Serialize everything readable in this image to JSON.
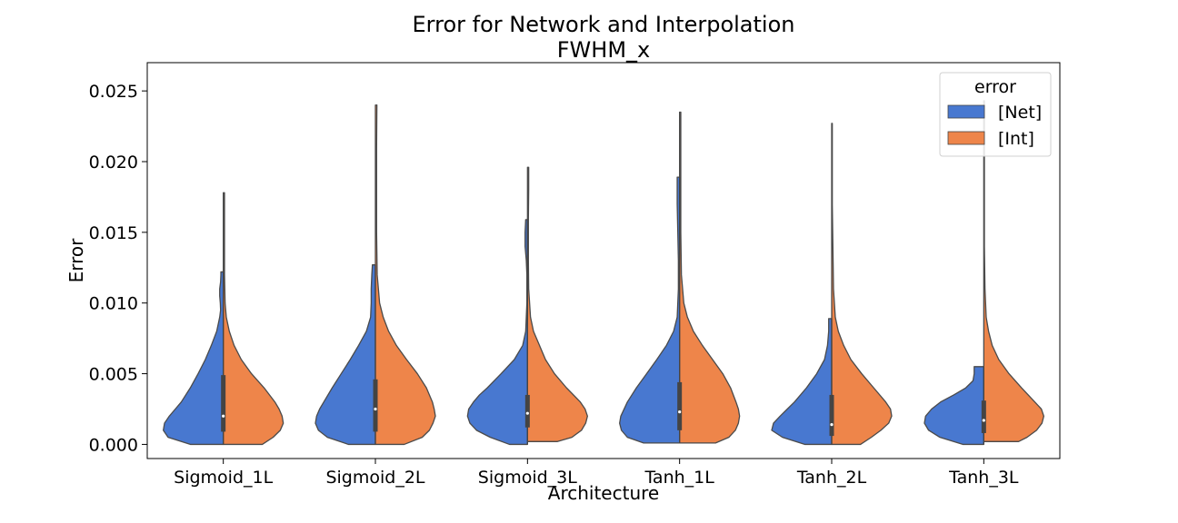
{
  "chart_data": {
    "type": "violin",
    "title": "Error for Network and Interpolation",
    "subtitle": "FWHM_x",
    "xlabel": "Architecture",
    "ylabel": "Error",
    "ylim": [
      -0.001,
      0.027
    ],
    "yticks": [
      0.0,
      0.005,
      0.01,
      0.015,
      0.02,
      0.025
    ],
    "ytick_labels": [
      "0.000",
      "0.005",
      "0.010",
      "0.015",
      "0.020",
      "0.025"
    ],
    "categories": [
      "Sigmoid_1L",
      "Sigmoid_2L",
      "Sigmoid_3L",
      "Tanh_1L",
      "Tanh_2L",
      "Tanh_3L"
    ],
    "split": true,
    "legend": {
      "title": "error",
      "position": "top-right",
      "entries": [
        "[Net]",
        "[Int]"
      ]
    },
    "series": [
      {
        "name": "[Net]",
        "color": "#4878d0",
        "side": "left",
        "distributions": [
          {
            "min": 0.0,
            "max": 0.0122,
            "q1": 0.0009,
            "median": 0.002,
            "q3": 0.0049,
            "profile": [
              [
                0.0,
                0.55
              ],
              [
                0.0005,
                0.92
              ],
              [
                0.001,
                1.0
              ],
              [
                0.0015,
                0.98
              ],
              [
                0.002,
                0.9
              ],
              [
                0.0025,
                0.8
              ],
              [
                0.003,
                0.7
              ],
              [
                0.004,
                0.55
              ],
              [
                0.005,
                0.42
              ],
              [
                0.006,
                0.3
              ],
              [
                0.007,
                0.2
              ],
              [
                0.008,
                0.11
              ],
              [
                0.009,
                0.06
              ],
              [
                0.0095,
                0.045
              ],
              [
                0.01,
                0.05
              ],
              [
                0.0105,
                0.06
              ],
              [
                0.011,
                0.06
              ],
              [
                0.0115,
                0.045
              ],
              [
                0.012,
                0.04
              ],
              [
                0.0122,
                0.04
              ]
            ]
          },
          {
            "min": 0.0,
            "max": 0.0127,
            "q1": 0.0009,
            "median": 0.0025,
            "q3": 0.0046,
            "profile": [
              [
                0.0,
                0.45
              ],
              [
                0.0005,
                0.8
              ],
              [
                0.001,
                0.95
              ],
              [
                0.0015,
                1.0
              ],
              [
                0.002,
                0.98
              ],
              [
                0.0025,
                0.93
              ],
              [
                0.003,
                0.86
              ],
              [
                0.004,
                0.72
              ],
              [
                0.005,
                0.57
              ],
              [
                0.006,
                0.42
              ],
              [
                0.007,
                0.28
              ],
              [
                0.008,
                0.15
              ],
              [
                0.009,
                0.08
              ],
              [
                0.01,
                0.07
              ],
              [
                0.011,
                0.07
              ],
              [
                0.012,
                0.06
              ],
              [
                0.0127,
                0.05
              ]
            ]
          },
          {
            "min": 0.0,
            "max": 0.0159,
            "q1": 0.0012,
            "median": 0.0022,
            "q3": 0.0035,
            "profile": [
              [
                0.0,
                0.3
              ],
              [
                0.0005,
                0.62
              ],
              [
                0.001,
                0.85
              ],
              [
                0.0015,
                0.96
              ],
              [
                0.002,
                1.0
              ],
              [
                0.0025,
                0.98
              ],
              [
                0.003,
                0.9
              ],
              [
                0.0035,
                0.8
              ],
              [
                0.004,
                0.67
              ],
              [
                0.005,
                0.44
              ],
              [
                0.006,
                0.22
              ],
              [
                0.007,
                0.08
              ],
              [
                0.008,
                0.03
              ],
              [
                0.01,
                0.01
              ],
              [
                0.012,
                0.01
              ],
              [
                0.013,
                0.02
              ],
              [
                0.014,
                0.04
              ],
              [
                0.015,
                0.04
              ],
              [
                0.0159,
                0.03
              ]
            ]
          },
          {
            "min": 0.0001,
            "max": 0.0189,
            "q1": 0.001,
            "median": 0.0023,
            "q3": 0.0044,
            "profile": [
              [
                0.0001,
                0.6
              ],
              [
                0.0005,
                0.87
              ],
              [
                0.001,
                0.97
              ],
              [
                0.0015,
                1.0
              ],
              [
                0.002,
                0.98
              ],
              [
                0.003,
                0.87
              ],
              [
                0.004,
                0.72
              ],
              [
                0.005,
                0.55
              ],
              [
                0.006,
                0.38
              ],
              [
                0.007,
                0.22
              ],
              [
                0.008,
                0.1
              ],
              [
                0.009,
                0.04
              ],
              [
                0.011,
                0.02
              ],
              [
                0.013,
                0.02
              ],
              [
                0.015,
                0.03
              ],
              [
                0.017,
                0.04
              ],
              [
                0.0189,
                0.04
              ]
            ]
          },
          {
            "min": 0.0,
            "max": 0.0089,
            "q1": 0.0006,
            "median": 0.0014,
            "q3": 0.0035,
            "profile": [
              [
                0.0,
                0.45
              ],
              [
                0.0005,
                0.82
              ],
              [
                0.001,
                1.0
              ],
              [
                0.0015,
                0.97
              ],
              [
                0.002,
                0.86
              ],
              [
                0.0025,
                0.74
              ],
              [
                0.003,
                0.62
              ],
              [
                0.004,
                0.42
              ],
              [
                0.005,
                0.25
              ],
              [
                0.006,
                0.12
              ],
              [
                0.007,
                0.07
              ],
              [
                0.008,
                0.05
              ],
              [
                0.0089,
                0.05
              ]
            ]
          },
          {
            "min": 0.0,
            "max": 0.0055,
            "q1": 0.0008,
            "median": 0.0017,
            "q3": 0.0031,
            "profile": [
              [
                0.0,
                0.35
              ],
              [
                0.0005,
                0.73
              ],
              [
                0.001,
                0.92
              ],
              [
                0.0015,
                0.99
              ],
              [
                0.002,
                0.97
              ],
              [
                0.0025,
                0.87
              ],
              [
                0.003,
                0.72
              ],
              [
                0.0035,
                0.5
              ],
              [
                0.004,
                0.3
              ],
              [
                0.0045,
                0.18
              ],
              [
                0.005,
                0.16
              ],
              [
                0.0055,
                0.16
              ]
            ]
          }
        ]
      },
      {
        "name": "[Int]",
        "color": "#ee854a",
        "side": "right",
        "distributions": [
          {
            "min": 0.0,
            "max": 0.0178,
            "profile": [
              [
                0.0,
                0.65
              ],
              [
                0.0005,
                0.83
              ],
              [
                0.001,
                0.95
              ],
              [
                0.0015,
                1.0
              ],
              [
                0.002,
                0.98
              ],
              [
                0.0025,
                0.93
              ],
              [
                0.003,
                0.86
              ],
              [
                0.004,
                0.68
              ],
              [
                0.005,
                0.47
              ],
              [
                0.006,
                0.3
              ],
              [
                0.007,
                0.18
              ],
              [
                0.008,
                0.1
              ],
              [
                0.009,
                0.05
              ],
              [
                0.01,
                0.03
              ],
              [
                0.012,
                0.02
              ],
              [
                0.014,
                0.02
              ],
              [
                0.016,
                0.02
              ],
              [
                0.0178,
                0.02
              ]
            ]
          },
          {
            "min": 0.0,
            "max": 0.024,
            "profile": [
              [
                0.0,
                0.48
              ],
              [
                0.0005,
                0.78
              ],
              [
                0.001,
                0.9
              ],
              [
                0.0015,
                0.96
              ],
              [
                0.002,
                1.0
              ],
              [
                0.0025,
                0.98
              ],
              [
                0.003,
                0.95
              ],
              [
                0.004,
                0.85
              ],
              [
                0.005,
                0.7
              ],
              [
                0.006,
                0.52
              ],
              [
                0.007,
                0.35
              ],
              [
                0.008,
                0.22
              ],
              [
                0.009,
                0.13
              ],
              [
                0.01,
                0.07
              ],
              [
                0.012,
                0.03
              ],
              [
                0.015,
                0.02
              ],
              [
                0.018,
                0.02
              ],
              [
                0.021,
                0.02
              ],
              [
                0.024,
                0.025
              ]
            ]
          },
          {
            "min": 0.0002,
            "max": 0.0196,
            "profile": [
              [
                0.0002,
                0.5
              ],
              [
                0.0005,
                0.74
              ],
              [
                0.001,
                0.9
              ],
              [
                0.0015,
                0.97
              ],
              [
                0.002,
                1.0
              ],
              [
                0.0025,
                0.96
              ],
              [
                0.003,
                0.88
              ],
              [
                0.004,
                0.65
              ],
              [
                0.005,
                0.45
              ],
              [
                0.006,
                0.3
              ],
              [
                0.007,
                0.2
              ],
              [
                0.008,
                0.1
              ],
              [
                0.009,
                0.05
              ],
              [
                0.011,
                0.02
              ],
              [
                0.013,
                0.015
              ],
              [
                0.016,
                0.015
              ],
              [
                0.018,
                0.02
              ],
              [
                0.0196,
                0.02
              ]
            ]
          },
          {
            "min": 0.0001,
            "max": 0.0235,
            "profile": [
              [
                0.0001,
                0.6
              ],
              [
                0.0005,
                0.82
              ],
              [
                0.001,
                0.93
              ],
              [
                0.0015,
                0.98
              ],
              [
                0.002,
                1.0
              ],
              [
                0.0025,
                0.98
              ],
              [
                0.003,
                0.94
              ],
              [
                0.004,
                0.85
              ],
              [
                0.005,
                0.72
              ],
              [
                0.006,
                0.55
              ],
              [
                0.007,
                0.38
              ],
              [
                0.008,
                0.23
              ],
              [
                0.009,
                0.13
              ],
              [
                0.01,
                0.07
              ],
              [
                0.012,
                0.03
              ],
              [
                0.015,
                0.02
              ],
              [
                0.018,
                0.02
              ],
              [
                0.021,
                0.02
              ],
              [
                0.0235,
                0.02
              ]
            ]
          },
          {
            "min": 0.0,
            "max": 0.0227,
            "profile": [
              [
                0.0,
                0.48
              ],
              [
                0.0005,
                0.66
              ],
              [
                0.001,
                0.82
              ],
              [
                0.0015,
                0.95
              ],
              [
                0.002,
                1.0
              ],
              [
                0.0025,
                0.98
              ],
              [
                0.003,
                0.9
              ],
              [
                0.004,
                0.7
              ],
              [
                0.005,
                0.5
              ],
              [
                0.006,
                0.32
              ],
              [
                0.007,
                0.2
              ],
              [
                0.008,
                0.11
              ],
              [
                0.009,
                0.06
              ],
              [
                0.011,
                0.03
              ],
              [
                0.014,
                0.02
              ],
              [
                0.017,
                0.01
              ],
              [
                0.02,
                0.01
              ],
              [
                0.0227,
                0.01
              ]
            ]
          },
          {
            "min": 0.0002,
            "max": 0.0243,
            "profile": [
              [
                0.0002,
                0.58
              ],
              [
                0.0005,
                0.72
              ],
              [
                0.001,
                0.88
              ],
              [
                0.0015,
                0.97
              ],
              [
                0.002,
                1.0
              ],
              [
                0.0025,
                0.96
              ],
              [
                0.003,
                0.85
              ],
              [
                0.004,
                0.63
              ],
              [
                0.005,
                0.42
              ],
              [
                0.006,
                0.25
              ],
              [
                0.007,
                0.14
              ],
              [
                0.008,
                0.08
              ],
              [
                0.009,
                0.04
              ],
              [
                0.011,
                0.02
              ],
              [
                0.014,
                0.01
              ],
              [
                0.018,
                0.01
              ],
              [
                0.021,
                0.01
              ],
              [
                0.0243,
                0.01
              ]
            ]
          }
        ]
      }
    ]
  }
}
